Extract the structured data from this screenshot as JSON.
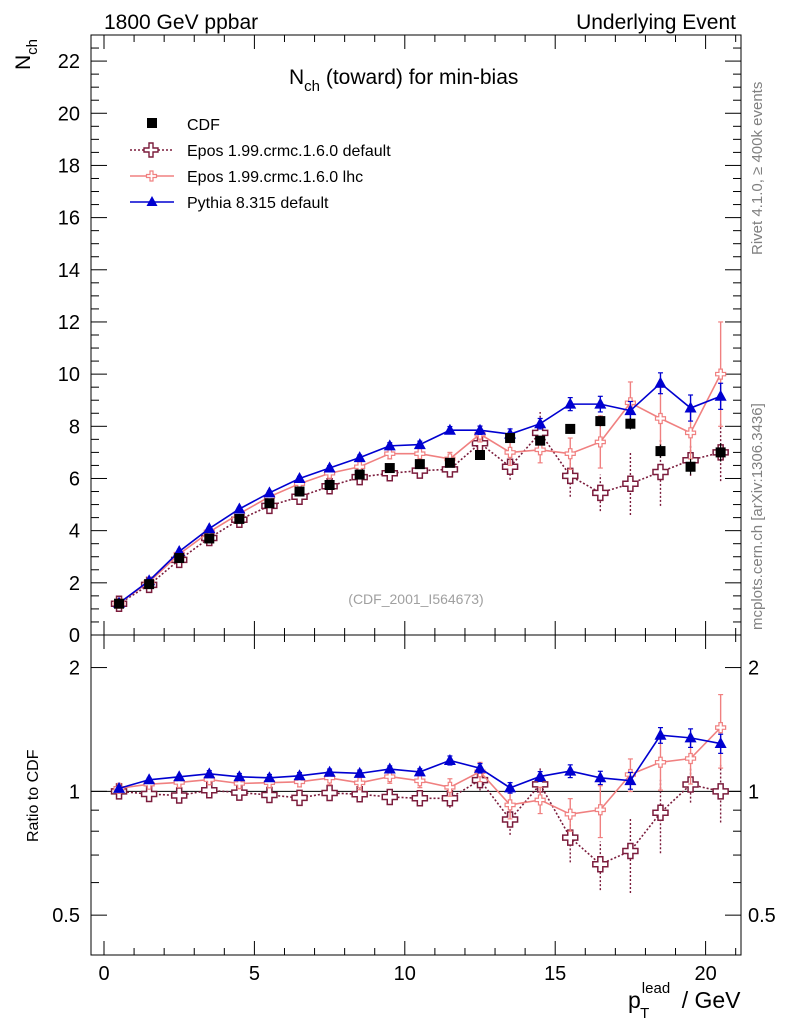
{
  "header": {
    "left": "1800 GeV ppbar",
    "right": "Underlying Event"
  },
  "side": {
    "rivet": "Rivet 4.1.0, ≥ 400k events",
    "mcplots": "mcplots.cern.ch [arXiv:1306.3436]"
  },
  "chart_data": {
    "type": "line",
    "title_main": "N",
    "title_sub": "ch",
    "title_rest": " (toward) for min-bias",
    "watermark": "(CDF_2001_I564673)",
    "ylabel_main": "N",
    "ylabel_sub": "ch",
    "ratio_ylabel": "Ratio to CDF",
    "xlabel_main": "p",
    "xlabel_sub": "T",
    "xlabel_sup": "lead",
    "xlabel_rest": " / GeV",
    "xlim": [
      -0.5,
      21.3
    ],
    "ylim": [
      0,
      23
    ],
    "ratio_ylim": [
      0.4,
      2.4
    ],
    "xticks": [
      0,
      5,
      10,
      15,
      20
    ],
    "xtick_labels": [
      "0",
      "5",
      "10",
      "15",
      "20"
    ],
    "yticks": [
      0,
      2,
      4,
      6,
      8,
      10,
      12,
      14,
      16,
      18,
      20,
      22
    ],
    "ytick_labels": [
      "0",
      "2",
      "4",
      "6",
      "8",
      "10",
      "12",
      "14",
      "16",
      "18",
      "20",
      "22"
    ],
    "ratio_yticks": [
      0.5,
      1,
      2
    ],
    "ratio_ytick_labels": [
      "0.5",
      "1",
      "2"
    ],
    "x": [
      0.5,
      1.5,
      2.5,
      3.5,
      4.5,
      5.5,
      6.5,
      7.5,
      8.5,
      9.5,
      10.5,
      11.5,
      12.5,
      13.5,
      14.5,
      15.5,
      16.5,
      17.5,
      18.5,
      19.5,
      20.5
    ],
    "data": {
      "name": "CDF",
      "values": [
        1.2,
        1.95,
        2.95,
        3.7,
        4.45,
        5.05,
        5.5,
        5.75,
        6.15,
        6.4,
        6.55,
        6.6,
        6.9,
        7.55,
        7.45,
        7.9,
        8.2,
        8.1,
        7.05,
        6.45,
        7.0
      ],
      "errors": [
        0.05,
        0.05,
        0.05,
        0.06,
        0.06,
        0.07,
        0.08,
        0.08,
        0.09,
        0.1,
        0.11,
        0.12,
        0.13,
        0.14,
        0.15,
        0.18,
        0.2,
        0.22,
        0.25,
        0.3,
        0.35
      ]
    },
    "series": [
      {
        "name": "Epos 1.99.crmc.1.6.0 default",
        "color": "#7b1c3c",
        "style": "dotted",
        "marker": "open-cross",
        "values": [
          1.2,
          1.92,
          2.88,
          3.72,
          4.42,
          4.95,
          5.3,
          5.7,
          6.05,
          6.2,
          6.3,
          6.35,
          7.35,
          6.45,
          7.75,
          6.1,
          5.45,
          5.8,
          6.25,
          6.7,
          7.0
        ],
        "errors": [
          0.05,
          0.06,
          0.06,
          0.08,
          0.1,
          0.12,
          0.14,
          0.16,
          0.18,
          0.2,
          0.22,
          0.25,
          0.3,
          0.5,
          0.8,
          0.8,
          0.7,
          1.2,
          1.3,
          0.6,
          1.1
        ],
        "ratio": [
          1.0,
          0.985,
          0.977,
          1.006,
          0.993,
          0.98,
          0.964,
          0.991,
          0.984,
          0.969,
          0.962,
          0.962,
          1.065,
          0.854,
          1.04,
          0.772,
          0.665,
          0.716,
          0.887,
          1.039,
          1.0
        ],
        "ratio_errors": [
          0.01,
          0.02,
          0.02,
          0.03,
          0.03,
          0.03,
          0.03,
          0.04,
          0.04,
          0.04,
          0.04,
          0.05,
          0.06,
          0.07,
          0.1,
          0.1,
          0.09,
          0.15,
          0.18,
          0.1,
          0.16
        ]
      },
      {
        "name": "Epos 1.99.crmc.1.6.0 lhc",
        "color": "#f08080",
        "style": "solid",
        "marker": "open-cross-small",
        "values": [
          1.22,
          2.03,
          3.1,
          3.95,
          4.65,
          5.3,
          5.8,
          6.2,
          6.45,
          6.95,
          6.95,
          6.75,
          7.7,
          7.0,
          7.1,
          6.95,
          7.4,
          8.9,
          8.3,
          7.75,
          10.0
        ],
        "errors": [
          0.05,
          0.06,
          0.06,
          0.08,
          0.1,
          0.12,
          0.14,
          0.16,
          0.18,
          0.2,
          0.22,
          0.25,
          0.3,
          0.5,
          0.5,
          0.6,
          1.0,
          0.8,
          1.2,
          1.0,
          2.0
        ],
        "ratio": [
          1.017,
          1.041,
          1.051,
          1.068,
          1.045,
          1.05,
          1.055,
          1.078,
          1.049,
          1.086,
          1.061,
          1.023,
          1.116,
          0.927,
          0.953,
          0.88,
          0.902,
          1.099,
          1.177,
          1.202,
          1.429
        ],
        "ratio_errors": [
          0.01,
          0.02,
          0.02,
          0.03,
          0.03,
          0.03,
          0.03,
          0.04,
          0.04,
          0.04,
          0.04,
          0.05,
          0.06,
          0.07,
          0.07,
          0.08,
          0.13,
          0.1,
          0.17,
          0.16,
          0.29
        ]
      },
      {
        "name": "Pythia 8.315 default",
        "color": "#0000d0",
        "style": "solid",
        "marker": "filled-triangle",
        "values": [
          1.22,
          2.08,
          3.2,
          4.08,
          4.83,
          5.45,
          6.0,
          6.4,
          6.8,
          7.25,
          7.3,
          7.85,
          7.85,
          7.7,
          8.1,
          8.85,
          8.85,
          8.6,
          9.65,
          8.7,
          9.15
        ],
        "errors": [
          0.03,
          0.04,
          0.04,
          0.05,
          0.06,
          0.07,
          0.08,
          0.09,
          0.1,
          0.12,
          0.13,
          0.14,
          0.16,
          0.2,
          0.2,
          0.25,
          0.3,
          0.35,
          0.4,
          0.5,
          0.5
        ],
        "ratio": [
          1.017,
          1.067,
          1.085,
          1.103,
          1.085,
          1.079,
          1.091,
          1.113,
          1.106,
          1.133,
          1.115,
          1.189,
          1.138,
          1.02,
          1.087,
          1.12,
          1.079,
          1.062,
          1.369,
          1.349,
          1.307
        ],
        "ratio_errors": [
          0.01,
          0.01,
          0.01,
          0.02,
          0.02,
          0.02,
          0.02,
          0.02,
          0.02,
          0.02,
          0.02,
          0.03,
          0.03,
          0.03,
          0.03,
          0.04,
          0.04,
          0.05,
          0.06,
          0.07,
          0.07
        ]
      }
    ]
  }
}
